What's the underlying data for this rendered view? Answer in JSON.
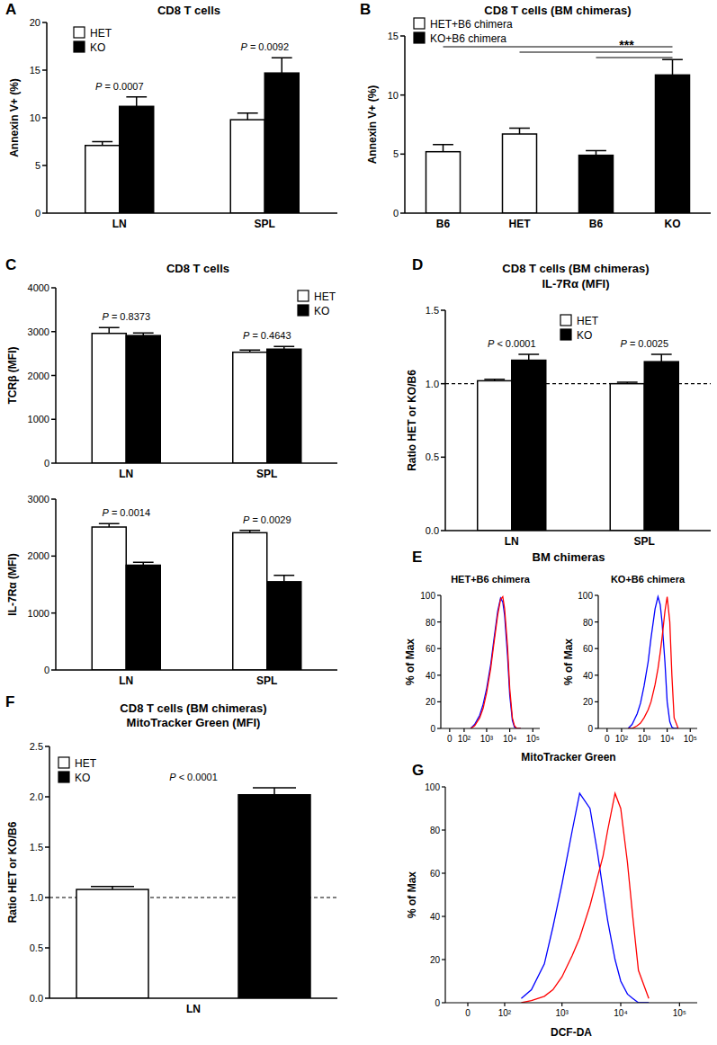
{
  "chart_data": [
    {
      "panel": "A",
      "type": "bar",
      "title": "CD8 T cells",
      "y_label": "Annexin V+ (%)",
      "categories": [
        "LN",
        "SPL"
      ],
      "series": [
        {
          "name": "HET",
          "color": "#ffffff",
          "values": [
            7.1,
            9.8
          ],
          "errors": [
            0.4,
            0.7
          ]
        },
        {
          "name": "KO",
          "color": "#000000",
          "values": [
            11.2,
            14.7
          ],
          "errors": [
            1.0,
            1.6
          ]
        }
      ],
      "ylim": [
        0,
        20
      ],
      "yticks": [
        0,
        5,
        10,
        15,
        20
      ],
      "legend": "top-left",
      "annotations": [
        "P = 0.0007",
        "P = 0.0092"
      ]
    },
    {
      "panel": "B",
      "type": "bar",
      "title": "CD8 T cells (BM chimeras)",
      "y_label": "Annexin V+ (%)",
      "categories": [
        "B6",
        "HET",
        "B6",
        "KO"
      ],
      "series": [
        {
          "name": "HET+B6 chimera",
          "color": "#ffffff",
          "values": [
            5.2,
            6.7,
            null,
            null
          ],
          "errors": [
            0.6,
            0.5,
            null,
            null
          ]
        },
        {
          "name": "KO+B6 chimera",
          "color": "#000000",
          "values": [
            null,
            null,
            4.9,
            11.7
          ],
          "errors": [
            null,
            null,
            0.4,
            1.3
          ]
        }
      ],
      "ylim": [
        0,
        15
      ],
      "yticks": [
        0,
        5,
        10,
        15
      ],
      "legend": "top-left",
      "significance": {
        "label": "***",
        "pairs": [
          [
            0,
            3
          ],
          [
            1,
            3
          ],
          [
            2,
            3
          ]
        ]
      }
    },
    {
      "panel": "C",
      "type": "bar",
      "title": "CD8 T cells",
      "y_label": "TCRβ (MFI)",
      "categories": [
        "LN",
        "SPL"
      ],
      "series": [
        {
          "name": "HET",
          "color": "#ffffff",
          "values": [
            2960,
            2530
          ],
          "errors": [
            130,
            50
          ]
        },
        {
          "name": "KO",
          "color": "#000000",
          "values": [
            2910,
            2600
          ],
          "errors": [
            60,
            60
          ]
        }
      ],
      "ylim": [
        0,
        4000
      ],
      "yticks": [
        0,
        1000,
        2000,
        3000,
        4000
      ],
      "legend": "top-right",
      "annotations": [
        "P = 0.8373",
        "P = 0.4643"
      ]
    },
    {
      "type": "bar",
      "y_label": "IL-7Rα (MFI)",
      "categories": [
        "LN",
        "SPL"
      ],
      "series": [
        {
          "color": "#ffffff",
          "values": [
            2510,
            2410
          ],
          "errors": [
            60,
            40
          ]
        },
        {
          "color": "#000000",
          "values": [
            1840,
            1550
          ],
          "errors": [
            50,
            110
          ]
        }
      ],
      "ylim": [
        0,
        3000
      ],
      "yticks": [
        0,
        1000,
        2000,
        3000
      ],
      "annotations": [
        "P = 0.0014",
        "P = 0.0029"
      ]
    },
    {
      "panel": "D",
      "type": "bar",
      "title": "CD8 T cells (BM chimeras)",
      "subtitle": "IL-7Rα (MFI)",
      "y_label": "Ratio HET or KO/B6",
      "categories": [
        "LN",
        "SPL"
      ],
      "series": [
        {
          "name": "HET",
          "color": "#ffffff",
          "values": [
            1.02,
            1.0
          ],
          "errors": [
            0.01,
            0.01
          ]
        },
        {
          "name": "KO",
          "color": "#000000",
          "values": [
            1.16,
            1.15
          ],
          "errors": [
            0.04,
            0.05
          ]
        }
      ],
      "ylim": [
        0,
        1.5
      ],
      "yticks": [
        {
          "value": 0,
          "label": "0.0"
        },
        {
          "value": 0.5,
          "label": "0.5"
        },
        {
          "value": 1,
          "label": "1.0"
        },
        {
          "value": 1.5,
          "label": "1.5"
        }
      ],
      "legend": "top",
      "reference_value": 1,
      "annotations": [
        "P < 0.0001",
        "P = 0.0025"
      ]
    },
    {
      "panel": "E",
      "type": "line",
      "title": "BM chimeras",
      "subtitle": "HET+B6 chimera",
      "y_label": "% of Max",
      "x_label": "MitoTracker Green",
      "log": "x",
      "xlim": [
        -50,
        200000
      ],
      "xticks": [
        0,
        {
          "value": 100,
          "label": "10²"
        },
        {
          "value": 1000,
          "label": "10³"
        },
        {
          "value": 10000,
          "label": "10⁴"
        },
        {
          "value": 100000,
          "label": "10⁵"
        }
      ],
      "ylim": [
        0,
        100
      ],
      "yticks": [
        0,
        20,
        40,
        60,
        80,
        100
      ],
      "x": [
        200,
        300,
        500,
        700,
        1000,
        1500,
        2000,
        3000,
        4000,
        5000,
        6000,
        8000,
        10000,
        13000,
        16000,
        20000,
        30000
      ],
      "series": [
        {
          "color": "#0000ff",
          "values": [
            0,
            3,
            10,
            18,
            30,
            48,
            65,
            88,
            98,
            95,
            85,
            55,
            25,
            6,
            1,
            0,
            0
          ]
        },
        {
          "color": "#ff0000",
          "values": [
            0,
            2,
            8,
            15,
            27,
            45,
            62,
            85,
            97,
            99,
            90,
            62,
            30,
            8,
            2,
            0,
            0
          ]
        }
      ]
    },
    {
      "type": "line",
      "subtitle": "KO+B6 chimera",
      "y_label": "% of Max",
      "log": "x",
      "xlim": [
        -50,
        200000
      ],
      "xticks": [
        0,
        {
          "value": 100,
          "label": "10²"
        },
        {
          "value": 1000,
          "label": "10³"
        },
        {
          "value": 10000,
          "label": "10⁴"
        },
        {
          "value": 100000,
          "label": "10⁵"
        }
      ],
      "ylim": [
        0,
        100
      ],
      "yticks": [
        0,
        20,
        40,
        60,
        80,
        100
      ],
      "x": [
        200,
        300,
        500,
        700,
        1000,
        1500,
        2000,
        3000,
        4000,
        5000,
        6000,
        8000,
        10000,
        13000,
        16000,
        20000,
        30000
      ],
      "series": [
        {
          "color": "#0000ff",
          "values": [
            0,
            3,
            11,
            19,
            32,
            50,
            68,
            90,
            99,
            93,
            80,
            50,
            20,
            5,
            1,
            0,
            0
          ]
        },
        {
          "color": "#ff0000",
          "values": [
            0,
            0,
            2,
            4,
            8,
            14,
            20,
            33,
            45,
            57,
            68,
            88,
            99,
            80,
            40,
            8,
            0
          ]
        }
      ]
    },
    {
      "panel": "F",
      "type": "bar",
      "title": "CD8 T cells (BM chimeras)",
      "subtitle": "MitoTracker Green (MFI)",
      "y_label": "Ratio HET or KO/B6",
      "categories": [
        "LN"
      ],
      "series": [
        {
          "name": "HET",
          "color": "#ffffff",
          "values": [
            1.08
          ],
          "errors": [
            0.03
          ]
        },
        {
          "name": "KO",
          "color": "#000000",
          "values": [
            2.02
          ],
          "errors": [
            0.07
          ]
        }
      ],
      "ylim": [
        0,
        2.5
      ],
      "yticks": [
        {
          "value": 0,
          "label": "0.0"
        },
        {
          "value": 0.5,
          "label": "0.5"
        },
        {
          "value": 1,
          "label": "1.0"
        },
        {
          "value": 1.5,
          "label": "1.5"
        },
        {
          "value": 2,
          "label": "2.0"
        },
        {
          "value": 2.5,
          "label": "2.5"
        }
      ],
      "legend": "top-left",
      "reference_value": 1,
      "annotations": [
        "P < 0.0001"
      ]
    },
    {
      "panel": "G",
      "type": "line",
      "y_label": "% of Max",
      "x_label": "DCF-DA",
      "log": "x",
      "xlim": [
        -50,
        200000
      ],
      "xticks": [
        0,
        {
          "value": 100,
          "label": "10²"
        },
        {
          "value": 1000,
          "label": "10³"
        },
        {
          "value": 10000,
          "label": "10⁴"
        },
        {
          "value": 100000,
          "label": "10⁵"
        }
      ],
      "ylim": [
        0,
        100
      ],
      "yticks": [
        0,
        20,
        40,
        60,
        80,
        100
      ],
      "x": [
        200,
        300,
        500,
        700,
        1000,
        1500,
        2000,
        3000,
        4000,
        5000,
        6000,
        8000,
        10000,
        13000,
        16000,
        20000,
        30000
      ],
      "series": [
        {
          "color": "#0000ff",
          "values": [
            2,
            6,
            18,
            35,
            55,
            80,
            97,
            90,
            70,
            52,
            38,
            20,
            10,
            4,
            2,
            0,
            0
          ]
        },
        {
          "color": "#ff0000",
          "values": [
            0,
            1,
            3,
            6,
            12,
            22,
            30,
            45,
            58,
            68,
            80,
            97,
            90,
            65,
            40,
            15,
            2
          ]
        }
      ]
    }
  ]
}
